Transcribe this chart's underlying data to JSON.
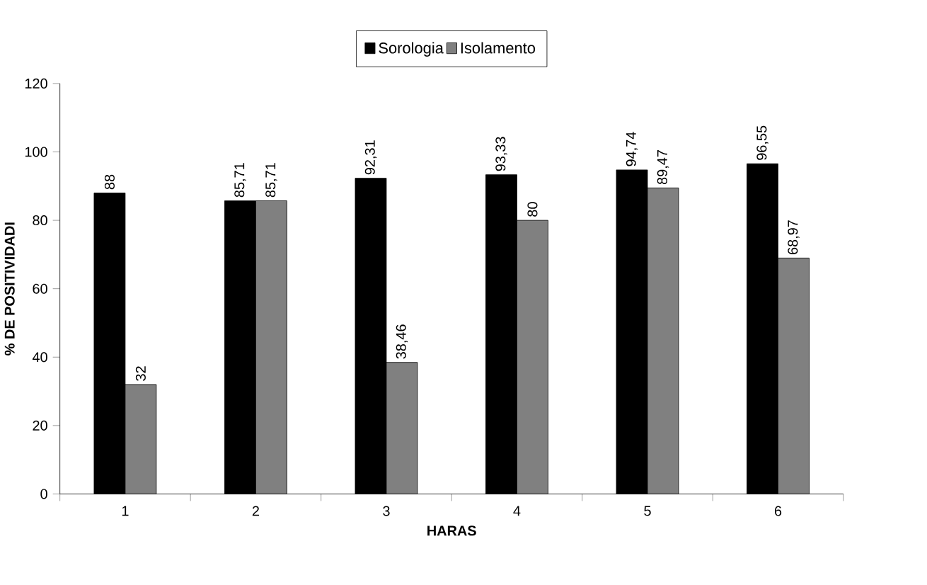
{
  "chart_data": {
    "type": "bar",
    "xlabel": "HARAS",
    "ylabel": "% DE POSITIVIDADI",
    "categories": [
      "1",
      "2",
      "3",
      "4",
      "5",
      "6"
    ],
    "series": [
      {
        "name": "Sorologia",
        "color": "#000000",
        "values": [
          88,
          85.71,
          92.31,
          93.33,
          94.74,
          96.55
        ],
        "value_labels": [
          "88",
          "85,71",
          "92,31",
          "93,33",
          "94,74",
          "96,55"
        ]
      },
      {
        "name": "Isolamento",
        "color": "#808080",
        "values": [
          32,
          85.71,
          38.46,
          80,
          89.47,
          68.97
        ],
        "value_labels": [
          "32",
          "85,71",
          "38,46",
          "80",
          "89,47",
          "68,97"
        ]
      }
    ],
    "ylim": [
      0,
      120
    ],
    "yticks": [
      0,
      20,
      40,
      60,
      80,
      100,
      120
    ],
    "legend": "top",
    "grid": false
  }
}
